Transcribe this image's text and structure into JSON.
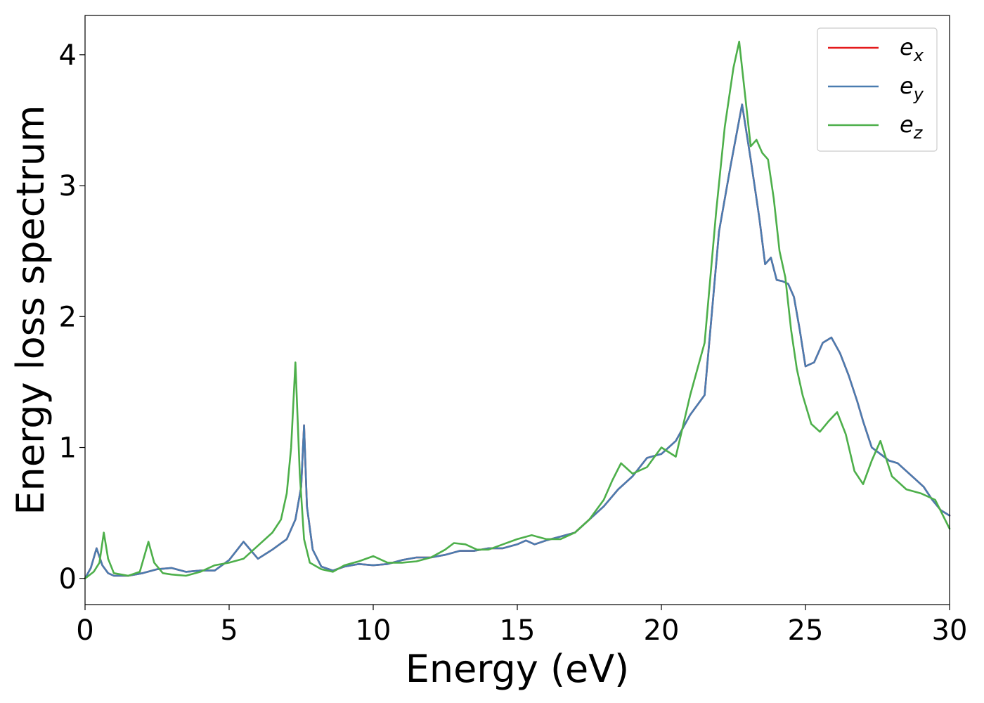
{
  "chart_data": {
    "type": "line",
    "title": "",
    "xlabel": "Energy (eV)",
    "ylabel": "Energy loss spectrum",
    "xlim": [
      0,
      30
    ],
    "ylim": [
      -0.2,
      4.3
    ],
    "xticks": [
      0,
      5,
      10,
      15,
      20,
      25,
      30
    ],
    "xtick_labels": [
      "0",
      "5",
      "10",
      "15",
      "20",
      "25",
      "30"
    ],
    "yticks": [
      0,
      1,
      2,
      3,
      4
    ],
    "ytick_labels": [
      "0",
      "1",
      "2",
      "3",
      "4"
    ],
    "grid": false,
    "legend_position": "top-right",
    "series": [
      {
        "name": "e_x",
        "legend_base": "e",
        "legend_sub": "x",
        "color": "#e41a1c",
        "x": [
          0,
          0.2,
          0.4,
          0.6,
          0.8,
          1.0,
          1.5,
          2.0,
          2.5,
          3.0,
          3.5,
          4.0,
          4.5,
          5.0,
          5.5,
          6.0,
          6.5,
          7.0,
          7.3,
          7.5,
          7.6,
          7.7,
          7.9,
          8.2,
          8.6,
          9.0,
          9.5,
          10.0,
          10.5,
          11.0,
          11.5,
          12.0,
          12.5,
          13.0,
          13.5,
          14.0,
          14.5,
          15.0,
          15.3,
          15.6,
          16.0,
          16.5,
          17.0,
          17.5,
          18.0,
          18.5,
          19.0,
          19.5,
          20.0,
          20.5,
          21.0,
          21.5,
          22.0,
          22.4,
          22.8,
          23.1,
          23.4,
          23.6,
          23.8,
          24.0,
          24.2,
          24.4,
          24.6,
          24.8,
          25.0,
          25.3,
          25.6,
          25.9,
          26.2,
          26.5,
          26.8,
          27.0,
          27.3,
          27.6,
          27.9,
          28.2,
          28.5,
          28.8,
          29.1,
          29.4,
          29.7,
          30.0
        ],
        "y": [
          0.0,
          0.08,
          0.23,
          0.1,
          0.04,
          0.02,
          0.02,
          0.04,
          0.07,
          0.08,
          0.05,
          0.06,
          0.06,
          0.14,
          0.28,
          0.15,
          0.22,
          0.3,
          0.45,
          0.7,
          1.17,
          0.55,
          0.22,
          0.09,
          0.06,
          0.09,
          0.11,
          0.1,
          0.11,
          0.14,
          0.16,
          0.16,
          0.18,
          0.21,
          0.21,
          0.23,
          0.23,
          0.26,
          0.29,
          0.26,
          0.29,
          0.32,
          0.35,
          0.45,
          0.55,
          0.68,
          0.78,
          0.92,
          0.95,
          1.05,
          1.25,
          1.4,
          2.65,
          3.15,
          3.62,
          3.2,
          2.75,
          2.4,
          2.45,
          2.28,
          2.27,
          2.25,
          2.15,
          1.9,
          1.62,
          1.65,
          1.8,
          1.84,
          1.72,
          1.55,
          1.35,
          1.2,
          1.0,
          0.95,
          0.9,
          0.88,
          0.82,
          0.76,
          0.7,
          0.6,
          0.52,
          0.48
        ]
      },
      {
        "name": "e_y",
        "legend_base": "e",
        "legend_sub": "y",
        "color": "#4a7cb0",
        "x": [
          0,
          0.2,
          0.4,
          0.6,
          0.8,
          1.0,
          1.5,
          2.0,
          2.5,
          3.0,
          3.5,
          4.0,
          4.5,
          5.0,
          5.5,
          6.0,
          6.5,
          7.0,
          7.3,
          7.5,
          7.6,
          7.7,
          7.9,
          8.2,
          8.6,
          9.0,
          9.5,
          10.0,
          10.5,
          11.0,
          11.5,
          12.0,
          12.5,
          13.0,
          13.5,
          14.0,
          14.5,
          15.0,
          15.3,
          15.6,
          16.0,
          16.5,
          17.0,
          17.5,
          18.0,
          18.5,
          19.0,
          19.5,
          20.0,
          20.5,
          21.0,
          21.5,
          22.0,
          22.4,
          22.8,
          23.1,
          23.4,
          23.6,
          23.8,
          24.0,
          24.2,
          24.4,
          24.6,
          24.8,
          25.0,
          25.3,
          25.6,
          25.9,
          26.2,
          26.5,
          26.8,
          27.0,
          27.3,
          27.6,
          27.9,
          28.2,
          28.5,
          28.8,
          29.1,
          29.4,
          29.7,
          30.0
        ],
        "y": [
          0.0,
          0.08,
          0.23,
          0.1,
          0.04,
          0.02,
          0.02,
          0.04,
          0.07,
          0.08,
          0.05,
          0.06,
          0.06,
          0.14,
          0.28,
          0.15,
          0.22,
          0.3,
          0.45,
          0.7,
          1.17,
          0.55,
          0.22,
          0.09,
          0.06,
          0.09,
          0.11,
          0.1,
          0.11,
          0.14,
          0.16,
          0.16,
          0.18,
          0.21,
          0.21,
          0.23,
          0.23,
          0.26,
          0.29,
          0.26,
          0.29,
          0.32,
          0.35,
          0.45,
          0.55,
          0.68,
          0.78,
          0.92,
          0.95,
          1.05,
          1.25,
          1.4,
          2.65,
          3.15,
          3.62,
          3.2,
          2.75,
          2.4,
          2.45,
          2.28,
          2.27,
          2.25,
          2.15,
          1.9,
          1.62,
          1.65,
          1.8,
          1.84,
          1.72,
          1.55,
          1.35,
          1.2,
          1.0,
          0.95,
          0.9,
          0.88,
          0.82,
          0.76,
          0.7,
          0.6,
          0.52,
          0.48
        ]
      },
      {
        "name": "e_z",
        "legend_base": "e",
        "legend_sub": "z",
        "color": "#4daf4a",
        "x": [
          0,
          0.3,
          0.5,
          0.65,
          0.8,
          1.0,
          1.5,
          1.9,
          2.2,
          2.4,
          2.7,
          3.0,
          3.5,
          4.0,
          4.5,
          5.0,
          5.5,
          6.0,
          6.5,
          6.8,
          7.0,
          7.15,
          7.3,
          7.45,
          7.6,
          7.8,
          8.2,
          8.6,
          9.0,
          9.5,
          10.0,
          10.5,
          11.0,
          11.5,
          12.0,
          12.5,
          12.8,
          13.2,
          13.6,
          14.0,
          14.5,
          15.0,
          15.5,
          16.0,
          16.5,
          17.0,
          17.5,
          18.0,
          18.3,
          18.6,
          19.0,
          19.5,
          20.0,
          20.5,
          21.0,
          21.5,
          21.9,
          22.2,
          22.5,
          22.7,
          22.9,
          23.1,
          23.3,
          23.5,
          23.7,
          23.9,
          24.1,
          24.3,
          24.5,
          24.7,
          24.9,
          25.2,
          25.5,
          25.8,
          26.1,
          26.4,
          26.7,
          27.0,
          27.3,
          27.6,
          28.0,
          28.5,
          29.0,
          29.5,
          30.0
        ],
        "y": [
          0.0,
          0.05,
          0.12,
          0.35,
          0.15,
          0.04,
          0.02,
          0.05,
          0.28,
          0.12,
          0.04,
          0.03,
          0.02,
          0.05,
          0.1,
          0.12,
          0.15,
          0.25,
          0.35,
          0.45,
          0.65,
          1.0,
          1.65,
          0.8,
          0.3,
          0.12,
          0.07,
          0.05,
          0.1,
          0.13,
          0.17,
          0.12,
          0.12,
          0.13,
          0.16,
          0.22,
          0.27,
          0.26,
          0.22,
          0.22,
          0.26,
          0.3,
          0.33,
          0.3,
          0.3,
          0.35,
          0.45,
          0.6,
          0.75,
          0.88,
          0.8,
          0.85,
          1.0,
          0.93,
          1.4,
          1.8,
          2.8,
          3.45,
          3.9,
          4.1,
          3.7,
          3.3,
          3.35,
          3.25,
          3.2,
          2.9,
          2.5,
          2.3,
          1.9,
          1.6,
          1.4,
          1.18,
          1.12,
          1.2,
          1.27,
          1.1,
          0.82,
          0.72,
          0.9,
          1.05,
          0.78,
          0.68,
          0.65,
          0.6,
          0.38
        ]
      }
    ]
  }
}
